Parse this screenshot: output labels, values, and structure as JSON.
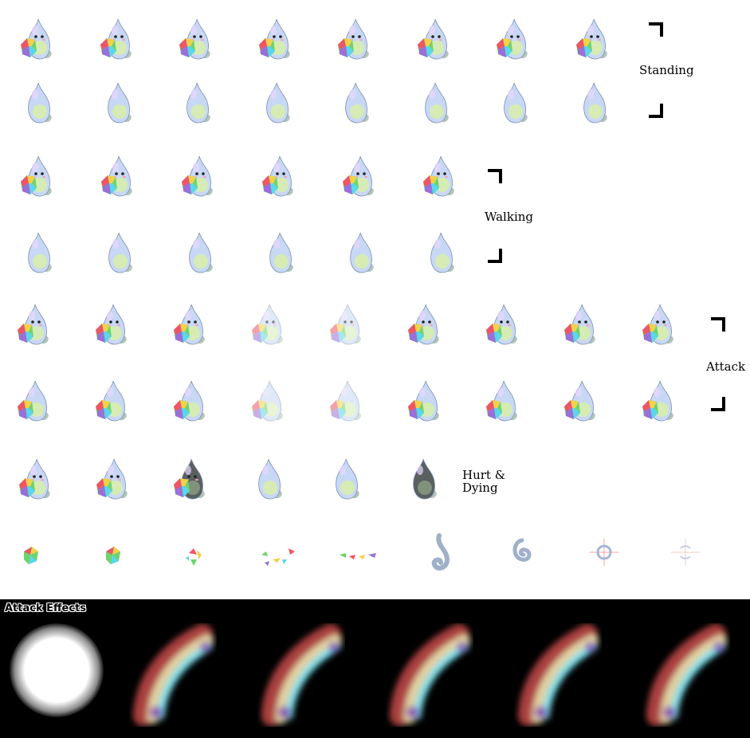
{
  "sprite_sheet": {
    "section_labels": {
      "standing": "Standing",
      "walking": "Walking",
      "attack": "Attack",
      "hurt_dying_line1": "Hurt &",
      "hurt_dying_line2": "Dying"
    },
    "effects_title": "Attack Effects",
    "colors": {
      "background": "#ffffff",
      "effects_background": "#000000",
      "ghost_body": "#c8d8f4",
      "ghost_glow": "#d8f0a8",
      "gem_red": "#ee5566",
      "gem_yellow": "#f2d24c",
      "gem_green": "#6fd36b",
      "gem_cyan": "#5ad7e8"
    },
    "frame_counts": {
      "standing_rows": [
        8,
        8
      ],
      "walking_rows": [
        6,
        6
      ],
      "attack_rows": [
        9,
        9
      ],
      "hurt_dying": 6,
      "gem_breakup": 9,
      "attack_effects": 6
    }
  }
}
